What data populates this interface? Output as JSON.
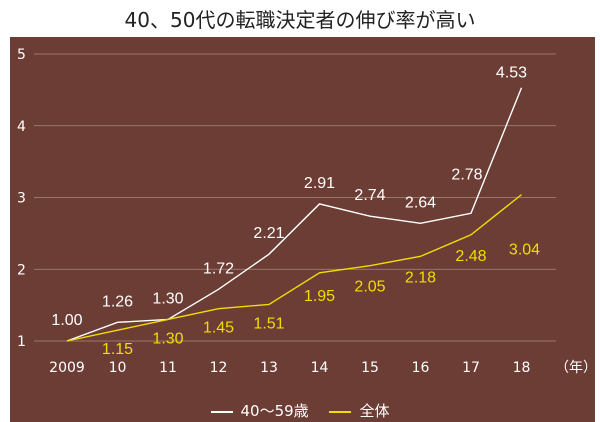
{
  "chart_data": {
    "type": "line",
    "title": "40、50代の転職決定者の伸び率が高い",
    "xlabel": "（年）",
    "ylabel": "",
    "categories": [
      "2009",
      "10",
      "11",
      "12",
      "13",
      "14",
      "15",
      "16",
      "17",
      "18"
    ],
    "ylim": [
      1,
      5
    ],
    "yticks": [
      "1",
      "2",
      "3",
      "4",
      "5"
    ],
    "grid": true,
    "legend_position": "bottom",
    "series": [
      {
        "name": "40〜59歳",
        "color": "#ffffff",
        "values": [
          1.0,
          1.26,
          1.3,
          1.72,
          2.21,
          2.91,
          2.74,
          2.64,
          2.78,
          4.53
        ],
        "labels": [
          "1.00",
          "1.26",
          "1.30",
          "1.72",
          "2.21",
          "2.91",
          "2.74",
          "2.64",
          "2.78",
          "4.53"
        ]
      },
      {
        "name": "全体",
        "color": "#f2dd00",
        "values": [
          1.0,
          1.15,
          1.3,
          1.45,
          1.51,
          1.95,
          2.05,
          2.18,
          2.48,
          3.04
        ],
        "labels": [
          "",
          "1.15",
          "1.30",
          "1.45",
          "1.51",
          "1.95",
          "2.05",
          "2.18",
          "2.48",
          "3.04"
        ]
      }
    ]
  }
}
